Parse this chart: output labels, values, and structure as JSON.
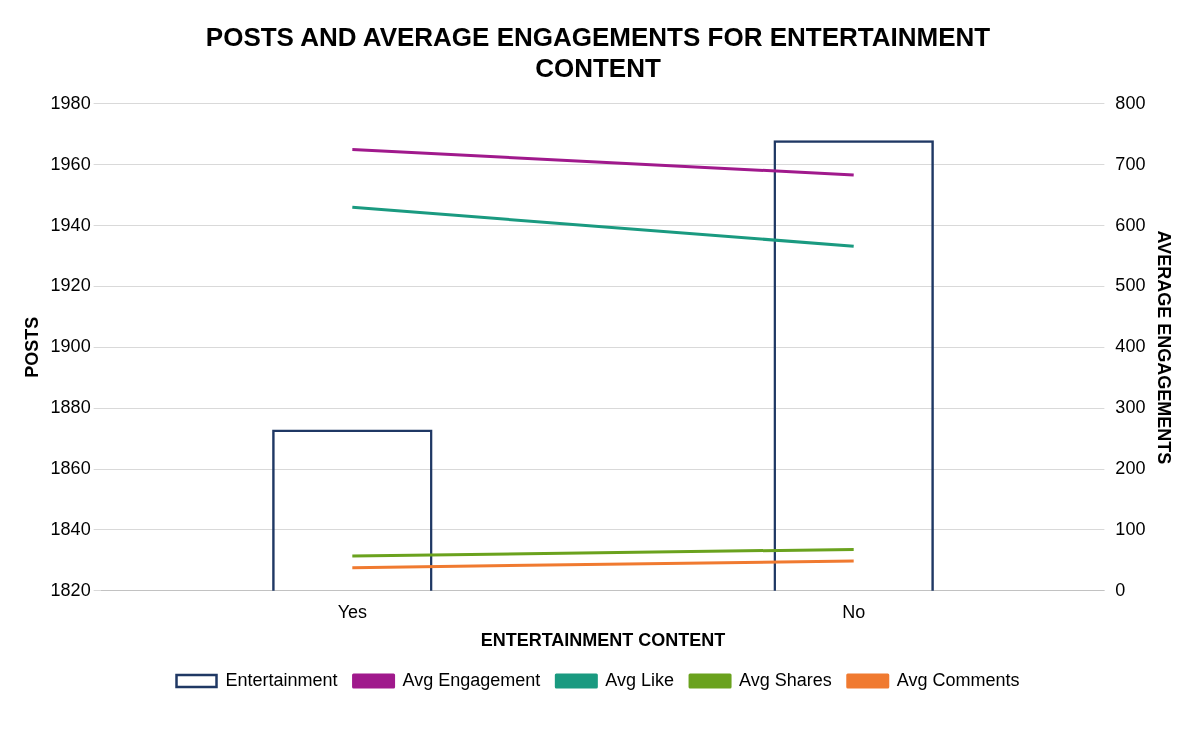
{
  "chart_data": {
    "type": "bar",
    "title": "POSTS AND AVERAGE ENGAGEMENTS FOR ENTERTAINMENT CONTENT",
    "xlabel": "ENTERTAINMENT CONTENT",
    "ylabel": "POSTS",
    "y2label": "AVERAGE ENGAGEMENTS",
    "categories": [
      "Yes",
      "No"
    ],
    "series": [
      {
        "name": "Entertainment",
        "color": "#1f3864",
        "values": [
          1873,
          1968
        ]
      },
      {
        "name": "Avg Engagement",
        "type": "line",
        "axis": "y2",
        "color": "#a0198c",
        "values": [
          725,
          683
        ]
      },
      {
        "name": "Avg Like",
        "type": "line",
        "axis": "y2",
        "color": "#1a9a80",
        "values": [
          630,
          566
        ]
      },
      {
        "name": "Avg Shares",
        "type": "line",
        "axis": "y2",
        "color": "#6aa21e",
        "values": [
          57,
          68
        ]
      },
      {
        "name": "Avg Comments",
        "type": "line",
        "axis": "y2",
        "color": "#f07a30",
        "values": [
          38,
          49
        ]
      }
    ],
    "ylim": [
      1820,
      1980
    ],
    "yticks": [
      1820,
      1840,
      1860,
      1880,
      1900,
      1920,
      1940,
      1960,
      1980
    ],
    "y2lim": [
      0,
      800
    ],
    "y2ticks": [
      0,
      100,
      200,
      300,
      400,
      500,
      600,
      700,
      800
    ],
    "grid": "y",
    "legend": "bottom",
    "marker": "none",
    "line_style": "solid"
  }
}
